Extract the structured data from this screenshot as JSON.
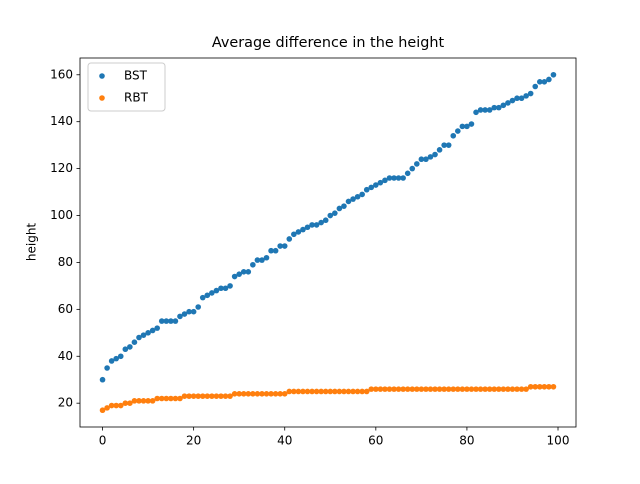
{
  "chart_data": {
    "type": "scatter",
    "title": "Average difference in the height",
    "y_label": "height",
    "x": [
      0,
      1,
      2,
      3,
      4,
      5,
      6,
      7,
      8,
      9,
      10,
      11,
      12,
      13,
      14,
      15,
      16,
      17,
      18,
      19,
      20,
      21,
      22,
      23,
      24,
      25,
      26,
      27,
      28,
      29,
      30,
      31,
      32,
      33,
      34,
      35,
      36,
      37,
      38,
      39,
      40,
      41,
      42,
      43,
      44,
      45,
      46,
      47,
      48,
      49,
      50,
      51,
      52,
      53,
      54,
      55,
      56,
      57,
      58,
      59,
      60,
      61,
      62,
      63,
      64,
      65,
      66,
      67,
      68,
      69,
      70,
      71,
      72,
      73,
      74,
      75,
      76,
      77,
      78,
      79,
      80,
      81,
      82,
      83,
      84,
      85,
      86,
      87,
      88,
      89,
      90,
      91,
      92,
      93,
      94,
      95,
      96,
      97,
      98,
      99
    ],
    "series": [
      {
        "name": "BST",
        "color": "#1f77b4",
        "values": [
          30,
          35,
          38,
          39,
          40,
          43,
          44,
          46,
          48,
          49,
          50,
          51,
          52,
          55,
          55,
          55,
          55,
          57,
          58,
          59,
          59,
          61,
          65,
          66,
          67,
          68,
          69,
          69,
          70,
          74,
          75,
          76,
          76,
          79,
          81,
          81,
          82,
          85,
          85,
          87,
          87,
          90,
          92,
          93,
          94,
          95,
          96,
          96,
          97,
          98,
          100,
          101,
          103,
          104,
          106,
          107,
          108,
          109,
          111,
          112,
          113,
          114,
          115,
          116,
          116,
          116,
          116,
          118,
          120,
          122,
          124,
          124,
          125,
          126,
          128,
          130,
          130,
          134,
          136,
          138,
          138,
          139,
          144,
          145,
          145,
          145,
          146,
          146,
          147,
          148,
          149,
          150,
          150,
          151,
          152,
          155,
          157,
          157,
          158,
          160
        ]
      },
      {
        "name": "RBT",
        "color": "#ff7f0e",
        "values": [
          17,
          18,
          19,
          19,
          19,
          20,
          20,
          21,
          21,
          21,
          21,
          21,
          22,
          22,
          22,
          22,
          22,
          22,
          23,
          23,
          23,
          23,
          23,
          23,
          23,
          23,
          23,
          23,
          23,
          24,
          24,
          24,
          24,
          24,
          24,
          24,
          24,
          24,
          24,
          24,
          24,
          25,
          25,
          25,
          25,
          25,
          25,
          25,
          25,
          25,
          25,
          25,
          25,
          25,
          25,
          25,
          25,
          25,
          25,
          26,
          26,
          26,
          26,
          26,
          26,
          26,
          26,
          26,
          26,
          26,
          26,
          26,
          26,
          26,
          26,
          26,
          26,
          26,
          26,
          26,
          26,
          26,
          26,
          26,
          26,
          26,
          26,
          26,
          26,
          26,
          26,
          26,
          26,
          26,
          27,
          27,
          27,
          27,
          27,
          27
        ]
      }
    ],
    "xlim": [
      -4.95,
      103.95
    ],
    "ylim": [
      9.85,
      167.15
    ],
    "xticks": [
      0,
      20,
      40,
      60,
      80,
      100
    ],
    "yticks": [
      20,
      40,
      60,
      80,
      100,
      120,
      140,
      160
    ],
    "legend": "upper left"
  }
}
